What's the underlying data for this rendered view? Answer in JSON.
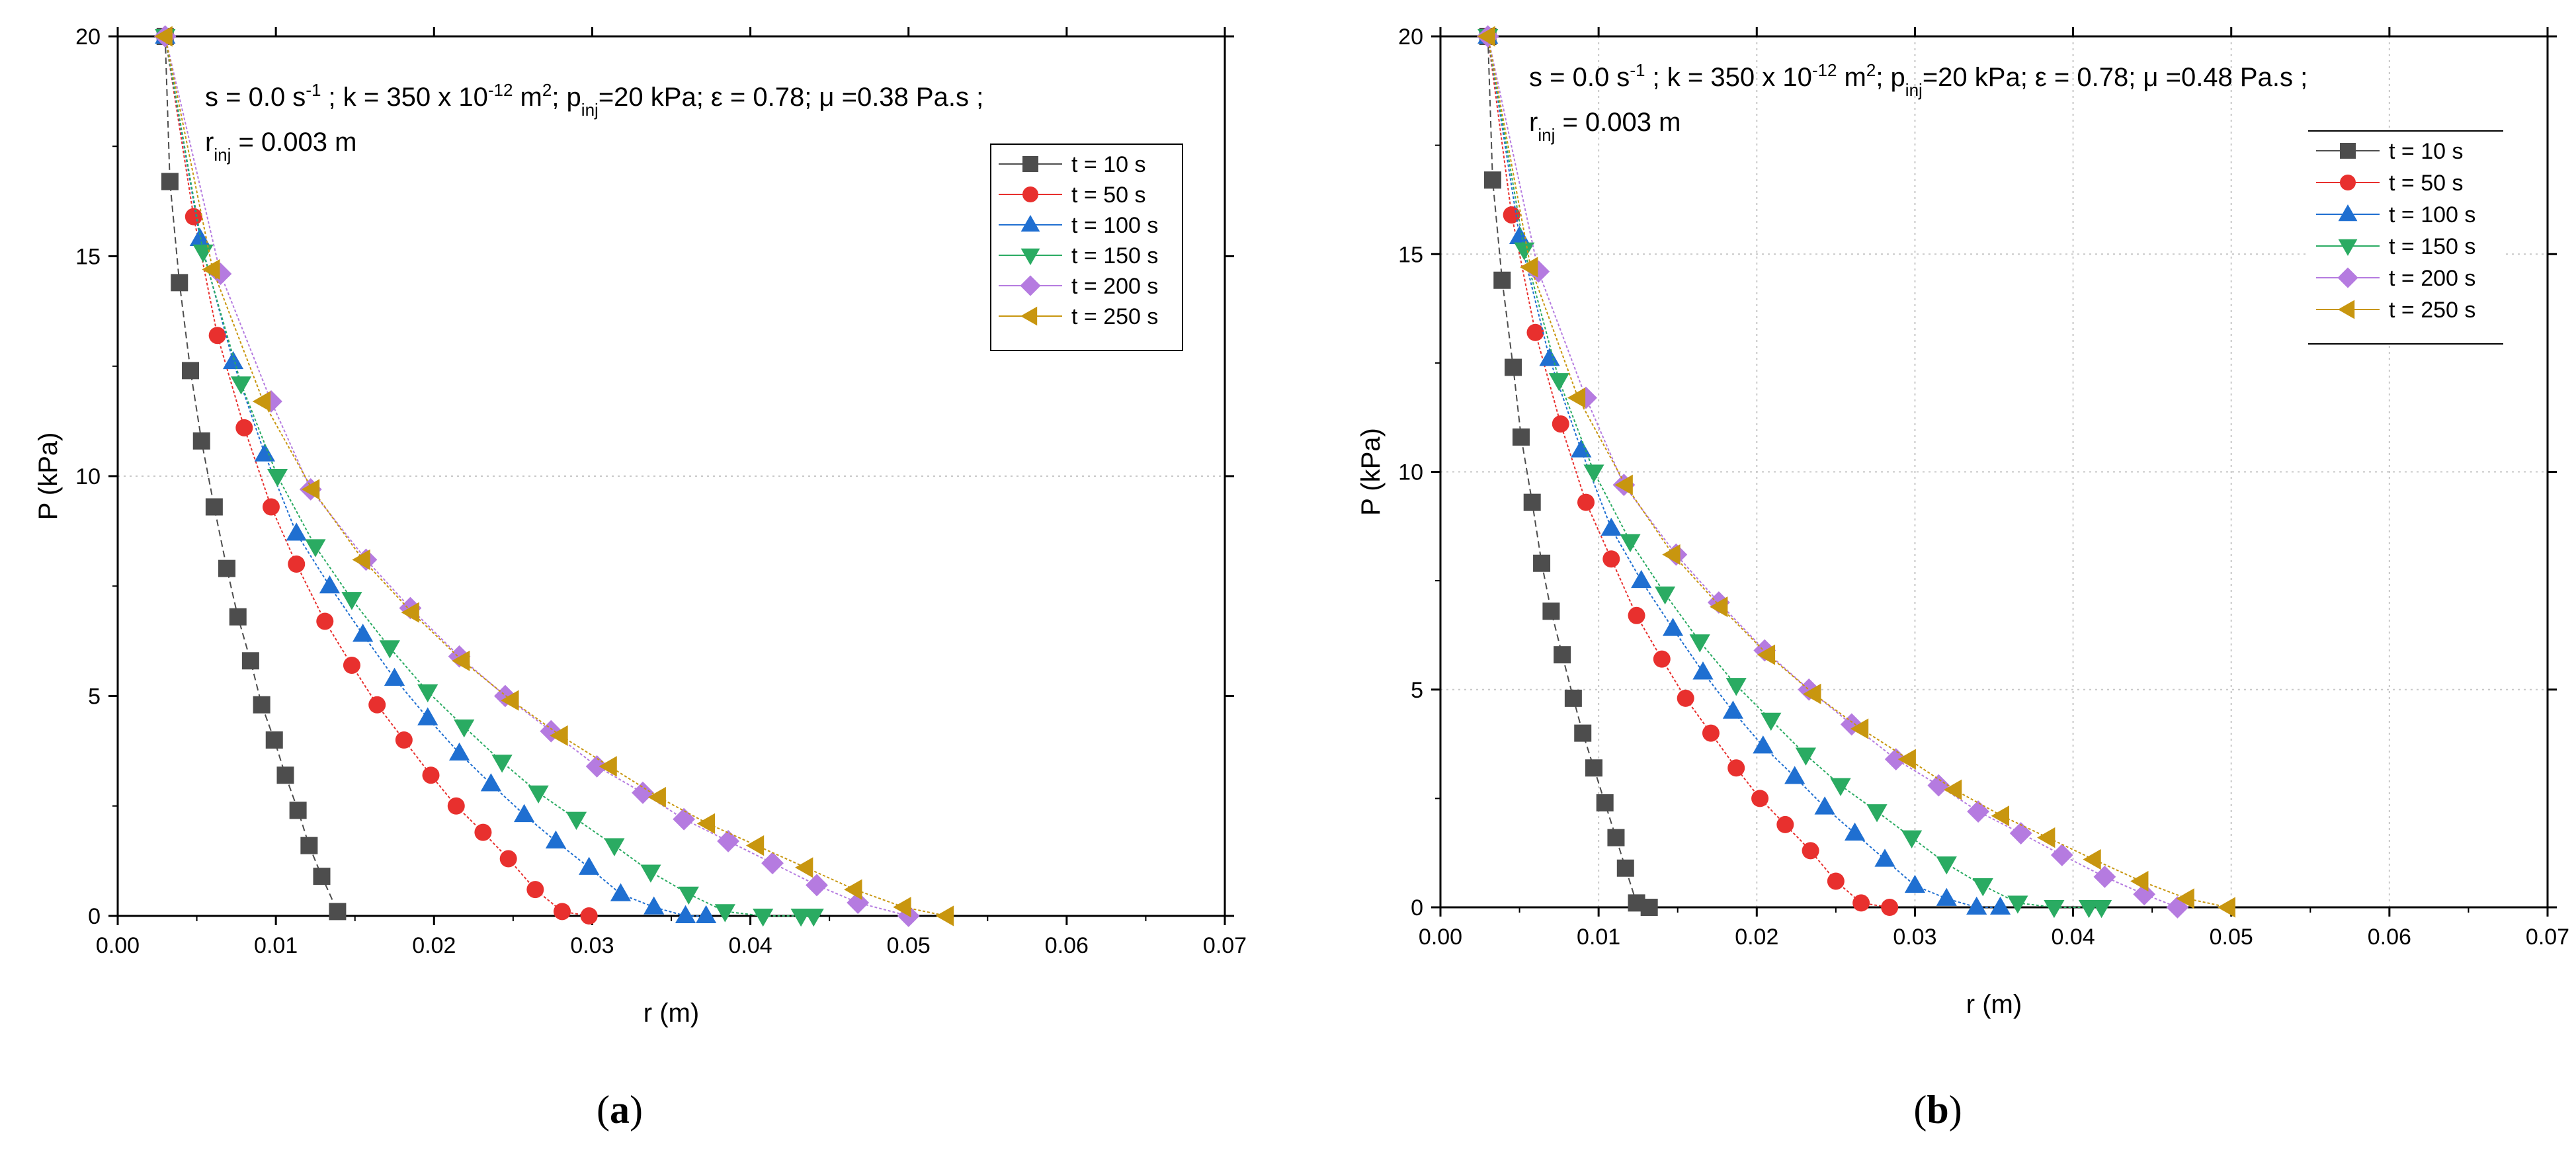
{
  "charts": [
    {
      "params_line1_html": "s = 0.0 s<tspan baseline-shift=\"super\" font-size=\"26\">-1</tspan> ; k = 350 x 10<tspan baseline-shift=\"super\" font-size=\"26\">-12</tspan> m<tspan baseline-shift=\"super\" font-size=\"26\">2</tspan>; p<tspan baseline-shift=\"sub\" font-size=\"26\">inj</tspan>=20 kPa; ε = 0.78; μ =0.38 Pa.s ;",
      "params_line2_html": "r<tspan baseline-shift=\"sub\" font-size=\"26\">inj</tspan> = 0.003 m"
    },
    {
      "params_line1_html": "s = 0.0 s<tspan baseline-shift=\"super\" font-size=\"26\">-1</tspan> ; k = 350 x 10<tspan baseline-shift=\"super\" font-size=\"26\">-12</tspan> m<tspan baseline-shift=\"super\" font-size=\"26\">2</tspan>; p<tspan baseline-shift=\"sub\" font-size=\"26\">inj</tspan>=20 kPa; ε = 0.78; μ =0.48 Pa.s ;",
      "params_line2_html": "r<tspan baseline-shift=\"sub\" font-size=\"26\">inj</tspan> = 0.003 m"
    }
  ],
  "chart_data": [
    {
      "type": "line",
      "panel": "a",
      "caption_open": "(",
      "caption_letter": "a",
      "caption_close": ")",
      "title": "",
      "params_line1_text": "s = 0.0 s-1 ; k = 350 x 10-12 m2; pinj=20 kPa; ε = 0.78; μ =0.38 Pa.s ;",
      "params_line2_text": "rinj = 0.003 m",
      "xlabel": "r (m)",
      "ylabel": "P (kPa)",
      "xlim": [
        0.0,
        0.07
      ],
      "ylim": [
        0,
        20
      ],
      "xticks": [
        0.0,
        0.01,
        0.02,
        0.03,
        0.04,
        0.05,
        0.06,
        0.07
      ],
      "xtick_labels": [
        "0.00",
        "0.01",
        "0.02",
        "0.03",
        "0.04",
        "0.05",
        "0.06",
        "0.07"
      ],
      "yticks": [
        0,
        5,
        10,
        15,
        20
      ],
      "ytick_labels": [
        "0",
        "5",
        "10",
        "15",
        "20"
      ],
      "grid": "dotted lines at y = 10 and x = 0.07",
      "legend_position": "top-right",
      "series": [
        {
          "name": "t = 10 s",
          "marker": "square",
          "color": "#4d4d4d",
          "x": [
            0.003,
            0.0033,
            0.0039,
            0.0046,
            0.0053,
            0.0061,
            0.0069,
            0.0076,
            0.0084,
            0.0091,
            0.0099,
            0.0106,
            0.0114,
            0.0121,
            0.0129,
            0.0139
          ],
          "y": [
            20.0,
            16.7,
            14.4,
            12.4,
            10.8,
            9.3,
            7.9,
            6.8,
            5.8,
            4.8,
            4.0,
            3.2,
            2.4,
            1.6,
            0.9,
            0.1
          ]
        },
        {
          "name": "t = 50 s",
          "marker": "circle",
          "color": "#e8302e",
          "x": [
            0.003,
            0.0048,
            0.0063,
            0.008,
            0.0097,
            0.0113,
            0.0131,
            0.0148,
            0.0164,
            0.0181,
            0.0198,
            0.0214,
            0.0231,
            0.0247,
            0.0264,
            0.0281,
            0.0298
          ],
          "y": [
            20.0,
            15.9,
            13.2,
            11.1,
            9.3,
            8.0,
            6.7,
            5.7,
            4.8,
            4.0,
            3.2,
            2.5,
            1.9,
            1.3,
            0.6,
            0.1,
            0.0
          ]
        },
        {
          "name": "t = 100 s",
          "marker": "triangle-up",
          "color": "#1f6fd1",
          "x": [
            0.003,
            0.0052,
            0.0073,
            0.0093,
            0.0113,
            0.0134,
            0.0155,
            0.0175,
            0.0196,
            0.0216,
            0.0236,
            0.0257,
            0.0277,
            0.0298,
            0.0318,
            0.0339,
            0.0359,
            0.0372
          ],
          "y": [
            20.0,
            15.4,
            12.6,
            10.5,
            8.7,
            7.5,
            6.4,
            5.4,
            4.5,
            3.7,
            3.0,
            2.3,
            1.7,
            1.1,
            0.5,
            0.2,
            0.0,
            0.0
          ]
        },
        {
          "name": "t = 150 s",
          "marker": "triangle-down",
          "color": "#2aab62",
          "x": [
            0.003,
            0.0054,
            0.0078,
            0.0101,
            0.0125,
            0.0148,
            0.0172,
            0.0196,
            0.0219,
            0.0243,
            0.0266,
            0.029,
            0.0314,
            0.0337,
            0.0361,
            0.0384,
            0.0408,
            0.0432,
            0.044
          ],
          "y": [
            20.0,
            15.1,
            12.1,
            10.0,
            8.4,
            7.2,
            6.1,
            5.1,
            4.3,
            3.5,
            2.8,
            2.2,
            1.6,
            1.0,
            0.5,
            0.1,
            0.0,
            0.0,
            0.0
          ]
        },
        {
          "name": "t = 200 s",
          "marker": "diamond",
          "color": "#b57be0",
          "x": [
            0.003,
            0.0065,
            0.0097,
            0.0122,
            0.0157,
            0.0185,
            0.0216,
            0.0245,
            0.0274,
            0.0303,
            0.0332,
            0.0358,
            0.0386,
            0.0414,
            0.0442,
            0.0468,
            0.05
          ],
          "y": [
            20.0,
            14.6,
            11.7,
            9.7,
            8.1,
            7.0,
            5.9,
            5.0,
            4.2,
            3.4,
            2.8,
            2.2,
            1.7,
            1.2,
            0.7,
            0.3,
            0.0
          ]
        },
        {
          "name": "t = 250 s",
          "marker": "triangle-left",
          "color": "#c8960f",
          "x": [
            0.003,
            0.006,
            0.0092,
            0.0123,
            0.0155,
            0.0186,
            0.0218,
            0.0249,
            0.028,
            0.0311,
            0.0342,
            0.0373,
            0.0404,
            0.0435,
            0.0466,
            0.0497,
            0.0524
          ],
          "y": [
            20.0,
            14.7,
            11.7,
            9.7,
            8.1,
            6.9,
            5.8,
            4.9,
            4.1,
            3.4,
            2.7,
            2.1,
            1.6,
            1.1,
            0.6,
            0.2,
            0.0
          ]
        }
      ]
    },
    {
      "type": "line",
      "panel": "b",
      "caption_open": "(",
      "caption_letter": "b",
      "caption_close": ")",
      "title": "",
      "params_line1_text": "s = 0.0 s-1 ; k = 350 x 10-12 m2; pinj=20 kPa; ε = 0.78; μ =0.48 Pa.s ;",
      "params_line2_text": "rinj = 0.003 m",
      "xlabel": "r (m)",
      "ylabel": "P (kPa)",
      "xlim": [
        0.0,
        0.07
      ],
      "ylim": [
        0,
        20
      ],
      "xticks": [
        0.0,
        0.01,
        0.02,
        0.03,
        0.04,
        0.05,
        0.06,
        0.07
      ],
      "xtick_labels": [
        "0.00",
        "0.01",
        "0.02",
        "0.03",
        "0.04",
        "0.05",
        "0.06",
        "0.07"
      ],
      "yticks": [
        0,
        5,
        10,
        15,
        20
      ],
      "ytick_labels": [
        "0",
        "5",
        "10",
        "15",
        "20"
      ],
      "grid": "dotted vertical lines at x = 0.01 … 0.07 and horizontal lines at y = 5, 10, 15",
      "legend_position": "top-right",
      "series": [
        {
          "name": "t = 10 s",
          "marker": "square",
          "color": "#4d4d4d",
          "x": [
            0.003,
            0.0033,
            0.0039,
            0.0046,
            0.0051,
            0.0058,
            0.0064,
            0.007,
            0.0077,
            0.0084,
            0.009,
            0.0097,
            0.0104,
            0.0111,
            0.0117,
            0.0124,
            0.0132
          ],
          "y": [
            20.0,
            16.7,
            14.4,
            12.4,
            10.8,
            9.3,
            7.9,
            6.8,
            5.8,
            4.8,
            4.0,
            3.2,
            2.4,
            1.6,
            0.9,
            0.1,
            0.0
          ]
        },
        {
          "name": "t = 50 s",
          "marker": "circle",
          "color": "#e8302e",
          "x": [
            0.003,
            0.0045,
            0.006,
            0.0076,
            0.0092,
            0.0108,
            0.0124,
            0.014,
            0.0155,
            0.0171,
            0.0187,
            0.0202,
            0.0218,
            0.0234,
            0.025,
            0.0266,
            0.0284
          ],
          "y": [
            20.0,
            15.9,
            13.2,
            11.1,
            9.3,
            8.0,
            6.7,
            5.7,
            4.8,
            4.0,
            3.2,
            2.5,
            1.9,
            1.3,
            0.6,
            0.1,
            0.0
          ]
        },
        {
          "name": "t = 100 s",
          "marker": "triangle-up",
          "color": "#1f6fd1",
          "x": [
            0.003,
            0.005,
            0.0069,
            0.0089,
            0.0108,
            0.0127,
            0.0147,
            0.0166,
            0.0185,
            0.0204,
            0.0224,
            0.0243,
            0.0262,
            0.0281,
            0.03,
            0.032,
            0.0339,
            0.0354
          ],
          "y": [
            20.0,
            15.4,
            12.6,
            10.5,
            8.7,
            7.5,
            6.4,
            5.4,
            4.5,
            3.7,
            3.0,
            2.3,
            1.7,
            1.1,
            0.5,
            0.2,
            0.0,
            0.0
          ]
        },
        {
          "name": "t = 150 s",
          "marker": "triangle-down",
          "color": "#2aab62",
          "x": [
            0.003,
            0.0053,
            0.0075,
            0.0097,
            0.012,
            0.0142,
            0.0164,
            0.0187,
            0.0209,
            0.0231,
            0.0253,
            0.0276,
            0.0298,
            0.032,
            0.0343,
            0.0365,
            0.0388,
            0.041,
            0.0418
          ],
          "y": [
            20.0,
            15.1,
            12.1,
            10.0,
            8.4,
            7.2,
            6.1,
            5.1,
            4.3,
            3.5,
            2.8,
            2.2,
            1.6,
            1.0,
            0.5,
            0.1,
            0.0,
            0.0,
            0.0
          ]
        },
        {
          "name": "t = 200 s",
          "marker": "diamond",
          "color": "#b57be0",
          "x": [
            0.003,
            0.0062,
            0.0092,
            0.0116,
            0.0149,
            0.0176,
            0.0205,
            0.0233,
            0.026,
            0.0288,
            0.0315,
            0.034,
            0.0367,
            0.0393,
            0.042,
            0.0445,
            0.0466
          ],
          "y": [
            20.0,
            14.6,
            11.7,
            9.7,
            8.1,
            7.0,
            5.9,
            5.0,
            4.2,
            3.4,
            2.8,
            2.2,
            1.7,
            1.2,
            0.7,
            0.3,
            0.0
          ]
        },
        {
          "name": "t = 250 s",
          "marker": "triangle-left",
          "color": "#c8960f",
          "x": [
            0.003,
            0.0057,
            0.0087,
            0.0117,
            0.0147,
            0.0177,
            0.0207,
            0.0236,
            0.0266,
            0.0296,
            0.0325,
            0.0355,
            0.0384,
            0.0413,
            0.0443,
            0.0472,
            0.0498
          ],
          "y": [
            20.0,
            14.7,
            11.7,
            9.7,
            8.1,
            6.9,
            5.8,
            4.9,
            4.1,
            3.4,
            2.7,
            2.1,
            1.6,
            1.1,
            0.6,
            0.2,
            0.0
          ]
        }
      ]
    }
  ]
}
